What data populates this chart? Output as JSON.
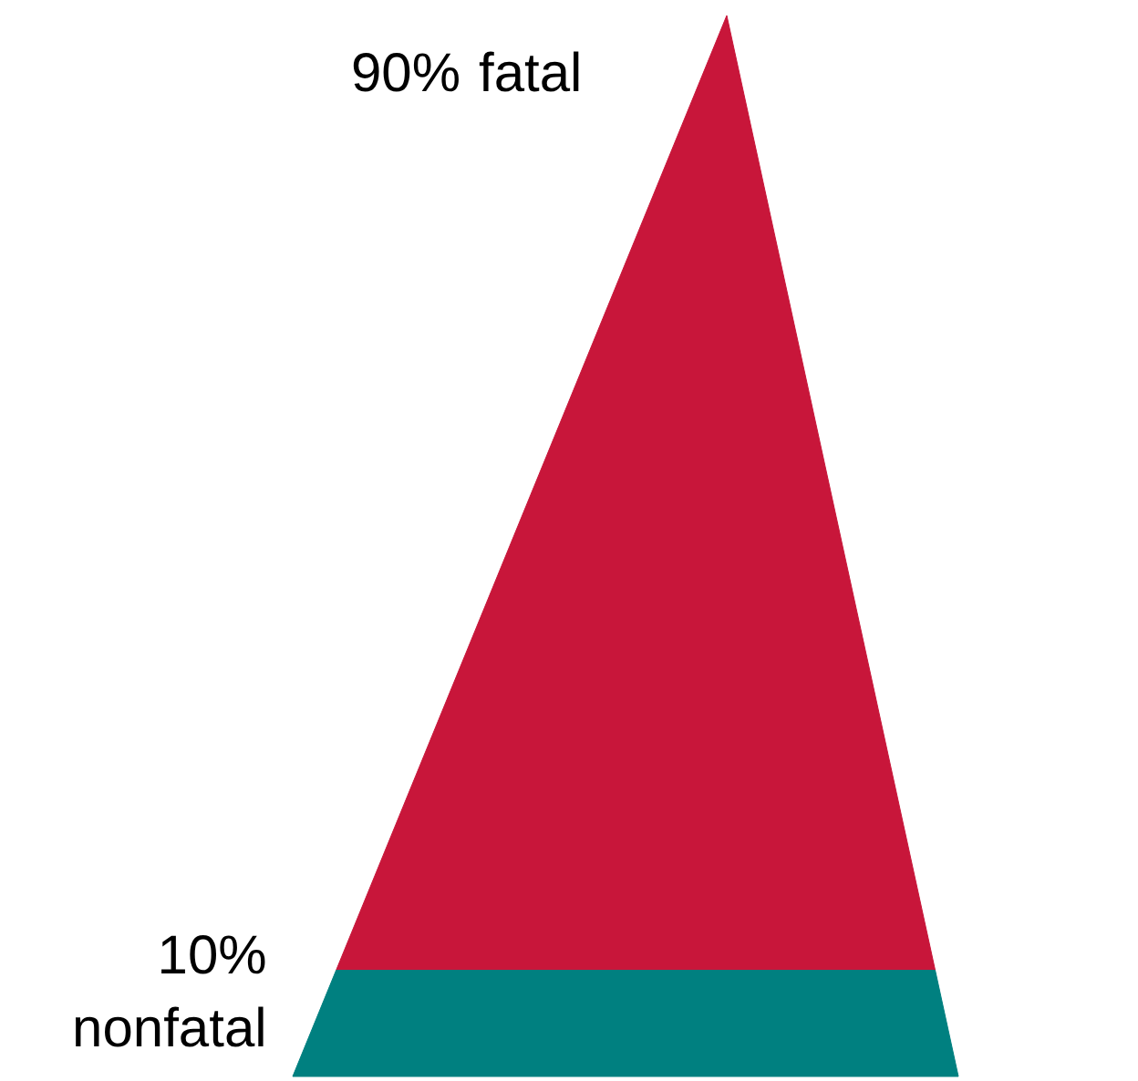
{
  "chart_data": {
    "type": "other",
    "categories": [
      "fatal",
      "nonfatal"
    ],
    "values": [
      90,
      10
    ],
    "value_labels": [
      "90%",
      "10%"
    ],
    "colors": [
      "#c8163a",
      "#008080"
    ]
  }
}
